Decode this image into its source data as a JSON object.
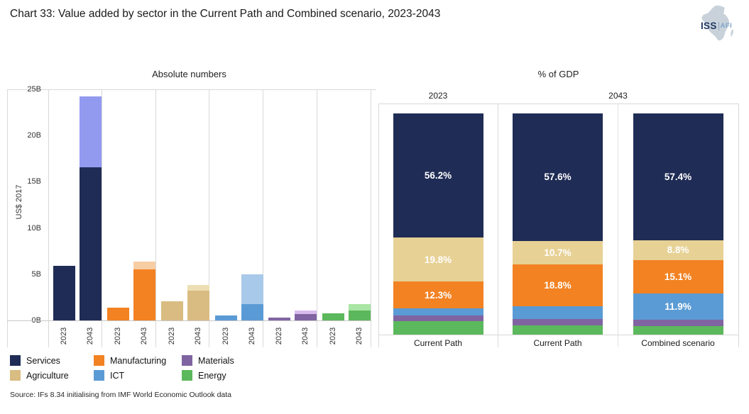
{
  "header": {
    "title": "Chart 33: Value added by sector in the Current Path and Combined scenario, 2023-2043",
    "logo": {
      "org": "ISS",
      "unit": "AFI"
    }
  },
  "colors": {
    "services": "#1f2c55",
    "services_light": "#929af0",
    "manufacturing": "#f28222",
    "manufacturing_light": "#f7cda4",
    "agriculture": "#d9bc82",
    "agriculture_light": "#eddfb3",
    "agriculture_gdp": "#e7d195",
    "ict": "#5b9bd5",
    "ict_light": "#a8c9e9",
    "materials": "#8064a2",
    "materials_light": "#d9bbee",
    "energy": "#5cb85c",
    "energy_light": "#a9e5a4",
    "border": "#d9d9d9",
    "axis": "#c8c8c8",
    "text": "#222222",
    "label_on_bar": "#ffffff"
  },
  "chart_data": [
    {
      "type": "bar",
      "title": "Absolute numbers",
      "ylabel": "US$ 2017",
      "unit": "billions of US$ 2017",
      "ylim": [
        0,
        25
      ],
      "yticks": [
        {
          "value": 25,
          "label": "25B"
        },
        {
          "value": 20,
          "label": "20B"
        },
        {
          "value": 15,
          "label": "15B"
        },
        {
          "value": 10,
          "label": "10B"
        },
        {
          "value": 5,
          "label": "5B"
        },
        {
          "value": 0,
          "label": "0B"
        }
      ],
      "x_tick_labels": [
        "2023",
        "2043"
      ],
      "stack_note": "2043 bars: solid colour = Current Path level, lighter shade above = Combined scenario increment",
      "groups": [
        {
          "sector": "Services",
          "color_key": "services",
          "values": {
            "2023": 5.9,
            "2043_current_path": 16.6,
            "2043_combined": 24.2
          }
        },
        {
          "sector": "Manufacturing",
          "color_key": "manufacturing",
          "values": {
            "2023": 1.4,
            "2043_current_path": 5.5,
            "2043_combined": 6.4
          }
        },
        {
          "sector": "Agriculture",
          "color_key": "agriculture",
          "values": {
            "2023": 2.1,
            "2043_current_path": 3.2,
            "2043_combined": 3.8
          }
        },
        {
          "sector": "ICT",
          "color_key": "ict",
          "values": {
            "2023": 0.5,
            "2043_current_path": 1.8,
            "2043_combined": 5.0
          }
        },
        {
          "sector": "Materials",
          "color_key": "materials",
          "values": {
            "2023": 0.3,
            "2043_current_path": 0.7,
            "2043_combined": 1.1
          }
        },
        {
          "sector": "Energy",
          "color_key": "energy",
          "values": {
            "2023": 0.8,
            "2043_current_path": 1.1,
            "2043_combined": 1.8
          }
        }
      ]
    },
    {
      "type": "stacked-bar",
      "title": "% of GDP",
      "col_headers": [
        {
          "label": "2023",
          "panels": [
            0
          ]
        },
        {
          "label": "2043",
          "panels": [
            1,
            2
          ]
        }
      ],
      "bars": [
        {
          "scenario_label": "Current Path",
          "year": "2023",
          "segments": [
            {
              "sector": "Services",
              "color_key": "services",
              "value": 56.2,
              "label": "56.2%"
            },
            {
              "sector": "Agriculture",
              "color_key": "agriculture_gdp",
              "value": 19.8,
              "label": "19.8%"
            },
            {
              "sector": "Manufacturing",
              "color_key": "manufacturing",
              "value": 12.3,
              "label": "12.3%"
            },
            {
              "sector": "ICT",
              "color_key": "ict",
              "value": 3.1,
              "label": ""
            },
            {
              "sector": "Materials",
              "color_key": "materials",
              "value": 2.5,
              "label": ""
            },
            {
              "sector": "Energy",
              "color_key": "energy",
              "value": 6.1,
              "label": ""
            }
          ]
        },
        {
          "scenario_label": "Current Path",
          "year": "2043",
          "segments": [
            {
              "sector": "Services",
              "color_key": "services",
              "value": 57.6,
              "label": "57.6%"
            },
            {
              "sector": "Agriculture",
              "color_key": "agriculture_gdp",
              "value": 10.7,
              "label": "10.7%"
            },
            {
              "sector": "Manufacturing",
              "color_key": "manufacturing",
              "value": 18.8,
              "label": "18.8%"
            },
            {
              "sector": "ICT",
              "color_key": "ict",
              "value": 5.7,
              "label": ""
            },
            {
              "sector": "Materials",
              "color_key": "materials",
              "value": 3.1,
              "label": ""
            },
            {
              "sector": "Energy",
              "color_key": "energy",
              "value": 4.1,
              "label": ""
            }
          ]
        },
        {
          "scenario_label": "Combined scenario",
          "year": "2043",
          "segments": [
            {
              "sector": "Services",
              "color_key": "services",
              "value": 57.4,
              "label": "57.4%"
            },
            {
              "sector": "Agriculture",
              "color_key": "agriculture_gdp",
              "value": 8.8,
              "label": "8.8%"
            },
            {
              "sector": "Manufacturing",
              "color_key": "manufacturing",
              "value": 15.1,
              "label": "15.1%"
            },
            {
              "sector": "ICT",
              "color_key": "ict",
              "value": 11.9,
              "label": "11.9%"
            },
            {
              "sector": "Materials",
              "color_key": "materials",
              "value": 2.9,
              "label": ""
            },
            {
              "sector": "Energy",
              "color_key": "energy",
              "value": 3.9,
              "label": ""
            }
          ]
        }
      ]
    }
  ],
  "legend": {
    "items": [
      {
        "label": "Services",
        "color_key": "services"
      },
      {
        "label": "Manufacturing",
        "color_key": "manufacturing"
      },
      {
        "label": "Materials",
        "color_key": "materials"
      },
      {
        "label": "Agriculture",
        "color_key": "agriculture"
      },
      {
        "label": "ICT",
        "color_key": "ict"
      },
      {
        "label": "Energy",
        "color_key": "energy"
      }
    ]
  },
  "source": "Source: IFs 8.34 initialising from IMF World Economic Outlook data"
}
